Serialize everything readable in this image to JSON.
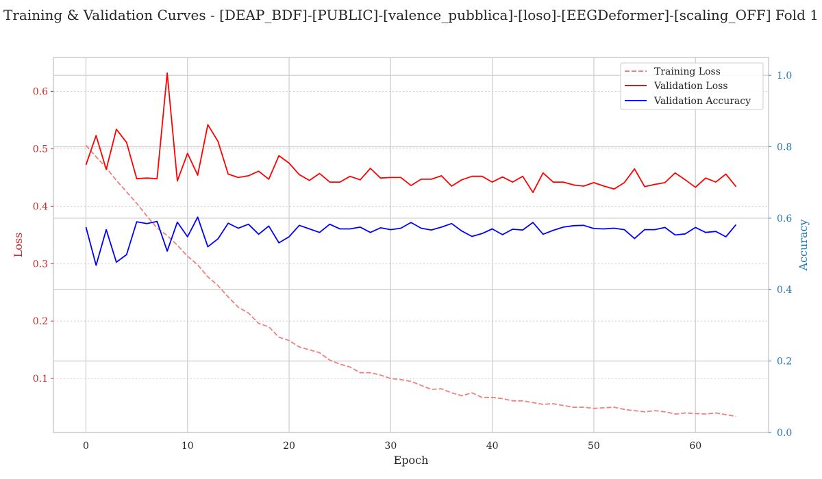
{
  "chart_data": {
    "type": "line",
    "title": "Training & Validation Curves - [DEAP_BDF]-[PUBLIC]-[valence_pubblica]-[loso]-[EEGDeformer]-[scaling_OFF] Fold 1",
    "xlabel": "Epoch",
    "ylabel_left": "Loss",
    "ylabel_right": "Accuracy",
    "xlim": [
      -3.2,
      67.2
    ],
    "ylim_left": [
      0.006,
      0.659
    ],
    "ylim_right": [
      0.0,
      1.05
    ],
    "x_ticks": [
      0,
      10,
      20,
      30,
      40,
      50,
      60
    ],
    "y_left_ticks": [
      0.1,
      0.2,
      0.3,
      0.4,
      0.5,
      0.6
    ],
    "y_right_ticks": [
      0.0,
      0.2,
      0.4,
      0.6,
      0.8,
      1.0
    ],
    "grid": true,
    "legend_position": "top-right",
    "colors": {
      "training_loss": "#f08080",
      "validation_loss": "#ff0000",
      "validation_accuracy": "#0000ff",
      "left_axis": "#d62728",
      "right_axis": "#1f77b4"
    },
    "series": [
      {
        "name": "Training Loss",
        "axis": "left",
        "style": "dashed",
        "x": [
          0,
          1,
          2,
          3,
          4,
          5,
          6,
          7,
          8,
          9,
          10,
          11,
          12,
          13,
          14,
          15,
          16,
          17,
          18,
          19,
          20,
          21,
          22,
          23,
          24,
          25,
          26,
          27,
          28,
          29,
          30,
          31,
          32,
          33,
          34,
          35,
          36,
          37,
          38,
          39,
          40,
          41,
          42,
          43,
          44,
          45,
          46,
          47,
          48,
          49,
          50,
          51,
          52,
          53,
          54,
          55,
          56,
          57,
          58,
          59,
          60,
          61,
          62,
          63,
          64
        ],
        "values": [
          0.506,
          0.486,
          0.467,
          0.445,
          0.425,
          0.405,
          0.383,
          0.362,
          0.349,
          0.332,
          0.313,
          0.298,
          0.277,
          0.262,
          0.242,
          0.224,
          0.214,
          0.196,
          0.19,
          0.172,
          0.166,
          0.155,
          0.15,
          0.145,
          0.132,
          0.125,
          0.12,
          0.11,
          0.11,
          0.106,
          0.1,
          0.098,
          0.095,
          0.088,
          0.081,
          0.082,
          0.075,
          0.07,
          0.075,
          0.067,
          0.067,
          0.065,
          0.061,
          0.061,
          0.058,
          0.055,
          0.056,
          0.053,
          0.05,
          0.05,
          0.048,
          0.049,
          0.05,
          0.046,
          0.044,
          0.042,
          0.044,
          0.042,
          0.038,
          0.04,
          0.039,
          0.038,
          0.04,
          0.037,
          0.034
        ]
      },
      {
        "name": "Validation Loss",
        "axis": "left",
        "style": "solid",
        "x": [
          0,
          1,
          2,
          3,
          4,
          5,
          6,
          7,
          8,
          9,
          10,
          11,
          12,
          13,
          14,
          15,
          16,
          17,
          18,
          19,
          20,
          21,
          22,
          23,
          24,
          25,
          26,
          27,
          28,
          29,
          30,
          31,
          32,
          33,
          34,
          35,
          36,
          37,
          38,
          39,
          40,
          41,
          42,
          43,
          44,
          45,
          46,
          47,
          48,
          49,
          50,
          51,
          52,
          53,
          54,
          55,
          56,
          57,
          58,
          59,
          60,
          61,
          62,
          63,
          64
        ],
        "values": [
          0.472,
          0.523,
          0.464,
          0.534,
          0.511,
          0.448,
          0.449,
          0.448,
          0.632,
          0.444,
          0.492,
          0.454,
          0.542,
          0.513,
          0.456,
          0.45,
          0.453,
          0.461,
          0.447,
          0.488,
          0.475,
          0.455,
          0.445,
          0.457,
          0.442,
          0.442,
          0.452,
          0.446,
          0.466,
          0.449,
          0.45,
          0.45,
          0.436,
          0.447,
          0.447,
          0.453,
          0.435,
          0.446,
          0.452,
          0.452,
          0.442,
          0.451,
          0.442,
          0.452,
          0.424,
          0.458,
          0.442,
          0.442,
          0.437,
          0.435,
          0.441,
          0.435,
          0.43,
          0.441,
          0.465,
          0.434,
          0.438,
          0.441,
          0.458,
          0.446,
          0.433,
          0.449,
          0.442,
          0.456,
          0.434
        ]
      },
      {
        "name": "Validation Accuracy",
        "axis": "right",
        "style": "solid",
        "x": [
          0,
          1,
          2,
          3,
          4,
          5,
          6,
          7,
          8,
          9,
          10,
          11,
          12,
          13,
          14,
          15,
          16,
          17,
          18,
          19,
          20,
          21,
          22,
          23,
          24,
          25,
          26,
          27,
          28,
          29,
          30,
          31,
          32,
          33,
          34,
          35,
          36,
          37,
          38,
          39,
          40,
          41,
          42,
          43,
          44,
          45,
          46,
          47,
          48,
          49,
          50,
          51,
          52,
          53,
          54,
          55,
          56,
          57,
          58,
          59,
          60,
          61,
          62,
          63,
          64
        ],
        "values": [
          0.575,
          0.468,
          0.568,
          0.477,
          0.498,
          0.59,
          0.585,
          0.591,
          0.508,
          0.589,
          0.548,
          0.603,
          0.52,
          0.542,
          0.586,
          0.572,
          0.583,
          0.555,
          0.578,
          0.531,
          0.548,
          0.58,
          0.57,
          0.56,
          0.583,
          0.57,
          0.57,
          0.575,
          0.56,
          0.573,
          0.568,
          0.572,
          0.588,
          0.572,
          0.567,
          0.575,
          0.585,
          0.564,
          0.549,
          0.557,
          0.57,
          0.554,
          0.569,
          0.567,
          0.588,
          0.555,
          0.566,
          0.575,
          0.579,
          0.58,
          0.571,
          0.57,
          0.572,
          0.568,
          0.543,
          0.568,
          0.568,
          0.574,
          0.553,
          0.556,
          0.574,
          0.56,
          0.563,
          0.548,
          0.582
        ]
      }
    ]
  }
}
